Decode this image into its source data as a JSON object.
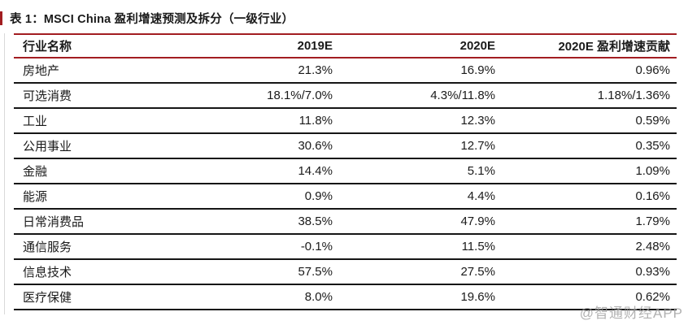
{
  "page": {
    "title": "表 1：MSCI China 盈利增速预测及拆分（一级行业）",
    "watermark": "@智通财经APP"
  },
  "colors": {
    "accent_red": "#a21d21",
    "separator_black": "#161616",
    "watermark_gray": "#9e9e9e"
  },
  "table": {
    "columns": [
      "行业名称",
      "2019E",
      "2020E",
      "2020E 盈利增速贡献"
    ],
    "rows": [
      {
        "industry": "房地产",
        "y2019e": "21.3%",
        "y2020e": "16.9%",
        "contribution": "0.96%"
      },
      {
        "industry": "可选消费",
        "y2019e": "18.1%/7.0%",
        "y2020e": "4.3%/11.8%",
        "contribution": "1.18%/1.36%"
      },
      {
        "industry": "工业",
        "y2019e": "11.8%",
        "y2020e": "12.3%",
        "contribution": "0.59%"
      },
      {
        "industry": "公用事业",
        "y2019e": "30.6%",
        "y2020e": "12.7%",
        "contribution": "0.35%"
      },
      {
        "industry": "金融",
        "y2019e": "14.4%",
        "y2020e": "5.1%",
        "contribution": "1.09%"
      },
      {
        "industry": "能源",
        "y2019e": "0.9%",
        "y2020e": "4.4%",
        "contribution": "0.16%"
      },
      {
        "industry": "日常消费品",
        "y2019e": "38.5%",
        "y2020e": "47.9%",
        "contribution": "1.79%"
      },
      {
        "industry": "通信服务",
        "y2019e": "-0.1%",
        "y2020e": "11.5%",
        "contribution": "2.48%"
      },
      {
        "industry": "信息技术",
        "y2019e": "57.5%",
        "y2020e": "27.5%",
        "contribution": "0.93%"
      },
      {
        "industry": "医疗保健",
        "y2019e": "8.0%",
        "y2020e": "19.6%",
        "contribution": "0.62%"
      }
    ]
  }
}
